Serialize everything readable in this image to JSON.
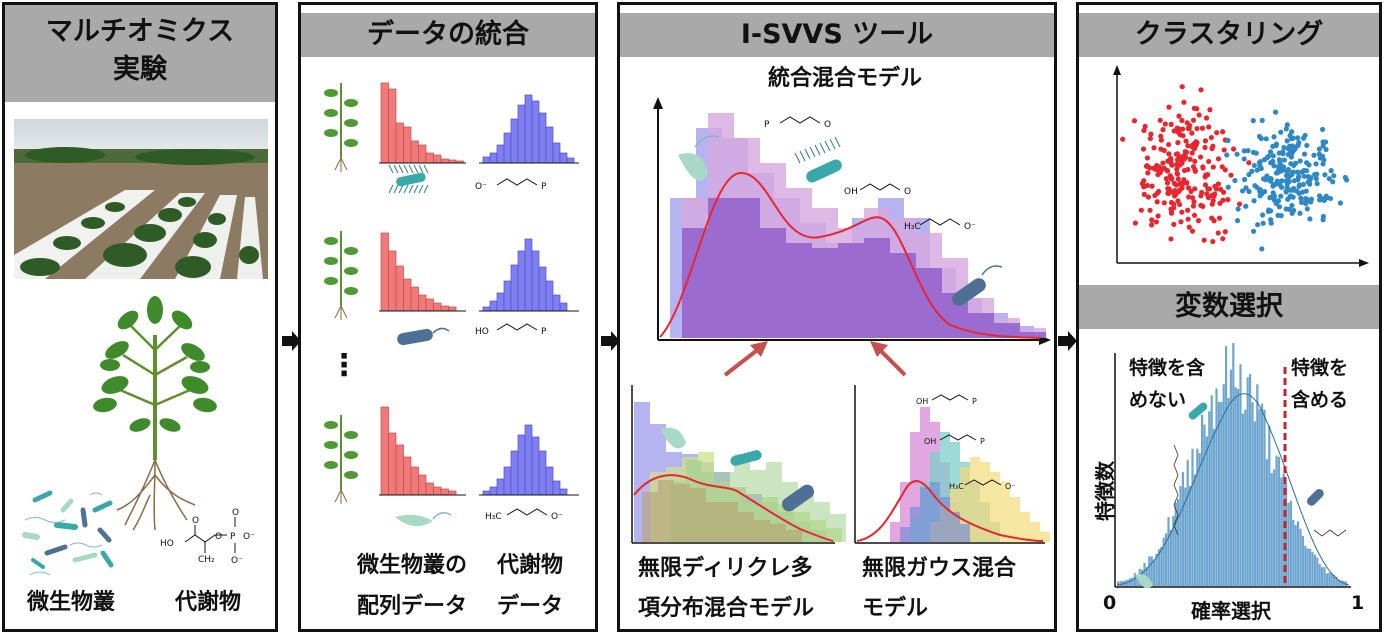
{
  "panel1": {
    "title_line1": "マルチオミクス",
    "title_line2": "実験",
    "label_microbes": "微生物叢",
    "label_metabolites": "代謝物"
  },
  "panel2": {
    "title": "データの統合",
    "ellipsis": "⋮",
    "label_seq_line1": "微生物叢の",
    "label_seq_line2": "配列データ",
    "label_met_line1": "代謝物",
    "label_met_line2": "データ"
  },
  "panel3": {
    "title": "I-SVVS ツール",
    "top_chart_title": "統合混合モデル",
    "left_label_line1": "無限ディリクレ多",
    "left_label_line2": "項分布混合モデル",
    "right_label_line1": "無限ガウス混合",
    "right_label_line2": "モデル"
  },
  "panel4": {
    "title_top": "クラスタリング",
    "title_bottom": "変数選択",
    "exclude_line1": "特徴を含",
    "exclude_line2": "めない",
    "include_line1": "特徴を",
    "include_line2": "含める",
    "ylabel": "特徴数",
    "xlabel": "確率選択",
    "x_min": "0",
    "x_max": "1"
  },
  "chem": {
    "h3c": "H₃C",
    "ho": "HO",
    "oh": "OH",
    "o": "O",
    "o_minus": "O⁻",
    "p": "P",
    "ch2": "CH₂"
  },
  "colors": {
    "header_bg": "#a9a9a9",
    "red_hist": "#f07a7a",
    "blue_hist": "#7f7ff2",
    "cluster_red": "#e8262e",
    "cluster_blue": "#2f88c6",
    "selection_hist": "#6ea6cf",
    "threshold": "#c0272d",
    "purple_fill": "#8b55c9",
    "pink_fill": "#d7a8de",
    "lavender_fill": "#a9a6ee",
    "fit_curve": "#e8262e",
    "arrow_red": "#c5504d",
    "microbe_teal": "#3aa7a8",
    "microbe_steel": "#4f7096",
    "microbe_mint": "#a7d9c6"
  },
  "chart_data": {
    "type": "histogram",
    "title": "",
    "xlabel": "確率選択",
    "ylabel": "特徴数",
    "xlim": [
      0,
      1
    ],
    "threshold": 0.7,
    "threshold_style": "dashed red line",
    "distribution": "unimodal bell shape peaking near x = 0.5"
  }
}
